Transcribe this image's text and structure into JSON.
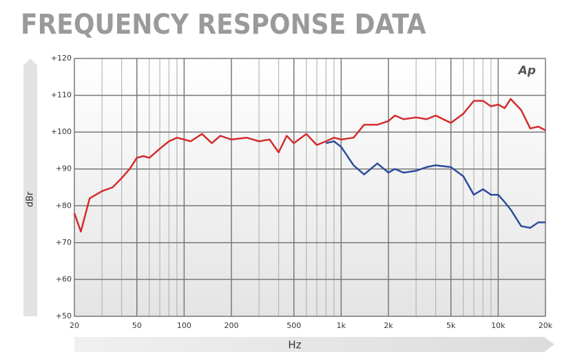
{
  "chart_data": {
    "type": "line",
    "title": "FREQUENCY RESPONSE DATA",
    "logo": "Ap",
    "xlabel": "Hz",
    "ylabel": "dBr",
    "xscale": "log",
    "xlim": [
      20,
      20000
    ],
    "ylim": [
      50,
      120
    ],
    "xticks": [
      20,
      50,
      100,
      200,
      500,
      {
        "value": 1000,
        "label": "1k"
      },
      {
        "value": 2000,
        "label": "2k"
      },
      {
        "value": 5000,
        "label": "5k"
      },
      {
        "value": 10000,
        "label": "10k"
      },
      {
        "value": 20000,
        "label": "20k"
      }
    ],
    "x_minor_ticks": [
      30,
      40,
      60,
      70,
      80,
      90,
      300,
      400,
      600,
      700,
      800,
      900,
      3000,
      4000,
      6000,
      7000,
      8000,
      9000
    ],
    "yticks": [
      {
        "value": 50,
        "label": "+50"
      },
      {
        "value": 60,
        "label": "+60"
      },
      {
        "value": 70,
        "label": "+70"
      },
      {
        "value": 80,
        "label": "+80"
      },
      {
        "value": 90,
        "label": "+90"
      },
      {
        "value": 100,
        "label": "+100"
      },
      {
        "value": 110,
        "label": "+110"
      },
      {
        "value": 120,
        "label": "+120"
      }
    ],
    "grid": true,
    "x": [
      20,
      22,
      25,
      30,
      35,
      40,
      45,
      50,
      55,
      60,
      70,
      80,
      90,
      100,
      110,
      130,
      150,
      170,
      200,
      250,
      300,
      350,
      400,
      450,
      500,
      600,
      700,
      800,
      900,
      1000,
      1200,
      1400,
      1700,
      2000,
      2200,
      2500,
      3000,
      3500,
      4000,
      5000,
      6000,
      7000,
      8000,
      9000,
      10000,
      11000,
      12000,
      14000,
      16000,
      18000,
      20000
    ],
    "series": [
      {
        "color": "#d42a2a",
        "values": [
          78,
          73,
          82,
          84,
          85,
          87.5,
          90,
          93,
          93.5,
          93,
          95.5,
          97.5,
          98.5,
          98,
          97.5,
          99.5,
          97,
          99,
          98,
          98.5,
          97.5,
          98,
          94.5,
          99,
          97,
          99.5,
          96.5,
          97.5,
          98.5,
          98,
          98.5,
          102,
          102,
          103,
          104.5,
          103.5,
          104,
          103.5,
          104.5,
          102.5,
          105,
          108.5,
          108.5,
          107,
          107.5,
          106.5,
          109,
          106,
          101,
          101.5,
          100.5
        ]
      },
      {
        "color": "#2a4c9c",
        "values": [
          null,
          null,
          null,
          null,
          null,
          null,
          null,
          null,
          null,
          null,
          null,
          null,
          null,
          null,
          null,
          null,
          null,
          null,
          null,
          null,
          null,
          null,
          null,
          null,
          null,
          null,
          null,
          97,
          97.5,
          96,
          91,
          88.5,
          91.5,
          89,
          90,
          89,
          89.5,
          90.5,
          91,
          90.5,
          88,
          83,
          84.5,
          83,
          83,
          81,
          79,
          74.5,
          74,
          75.5,
          75.5
        ]
      }
    ]
  }
}
